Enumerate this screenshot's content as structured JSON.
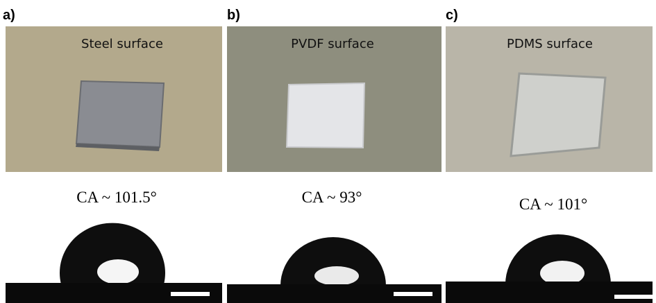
{
  "panels": [
    {
      "label": "a)",
      "title": "Steel surface",
      "contact_angle": "CA ~ 101.5°"
    },
    {
      "label": "b)",
      "title": "PVDF surface",
      "contact_angle": "CA ~ 93°"
    },
    {
      "label": "c)",
      "title": "PDMS surface",
      "contact_angle": "CA ~ 101°"
    }
  ]
}
